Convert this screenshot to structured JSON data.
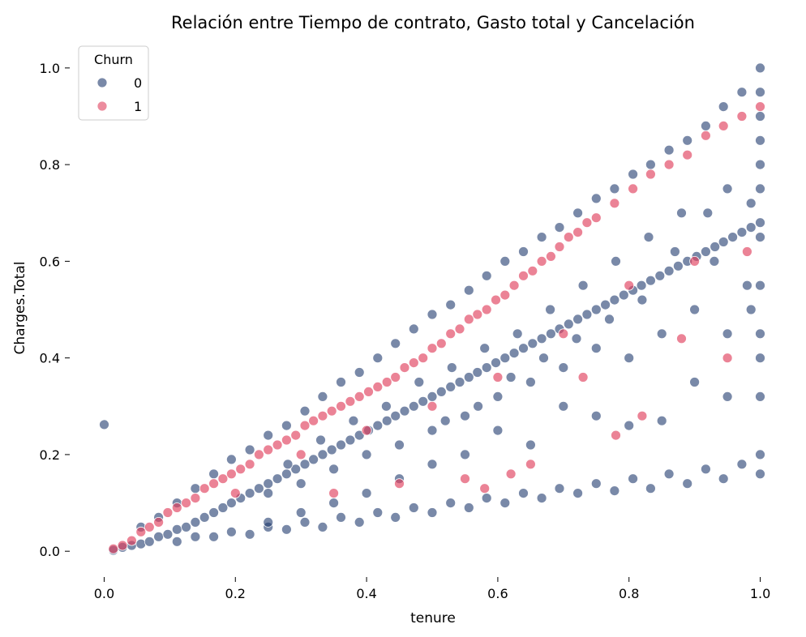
{
  "chart_data": {
    "type": "scatter",
    "title": "Relación entre Tiempo de contrato, Gasto total y Cancelación",
    "xlabel": "tenure",
    "ylabel": "Charges.Total",
    "xlim": [
      -0.05,
      1.05
    ],
    "ylim": [
      -0.05,
      1.04
    ],
    "xticks": [
      0.0,
      0.2,
      0.4,
      0.6,
      0.8,
      1.0
    ],
    "xtick_labels": [
      "0.0",
      "0.2",
      "0.4",
      "0.6",
      "0.8",
      "1.0"
    ],
    "yticks": [
      0.0,
      0.2,
      0.4,
      0.6,
      0.8,
      1.0
    ],
    "ytick_labels": [
      "0.0",
      "0.2",
      "0.4",
      "0.6",
      "0.8",
      "1.0"
    ],
    "grid": false,
    "legend": {
      "title": "Churn",
      "placement": "top-left"
    },
    "series": [
      {
        "name": "0",
        "color": "#1f3a6e",
        "points": [
          [
            0.0,
            0.262
          ],
          [
            0.014,
            0.002
          ],
          [
            0.028,
            0.008
          ],
          [
            0.042,
            0.012
          ],
          [
            0.056,
            0.015
          ],
          [
            0.069,
            0.02
          ],
          [
            0.083,
            0.03
          ],
          [
            0.097,
            0.035
          ],
          [
            0.111,
            0.045
          ],
          [
            0.125,
            0.05
          ],
          [
            0.139,
            0.06
          ],
          [
            0.153,
            0.07
          ],
          [
            0.167,
            0.08
          ],
          [
            0.181,
            0.09
          ],
          [
            0.194,
            0.1
          ],
          [
            0.208,
            0.11
          ],
          [
            0.222,
            0.12
          ],
          [
            0.236,
            0.13
          ],
          [
            0.25,
            0.14
          ],
          [
            0.264,
            0.15
          ],
          [
            0.278,
            0.16
          ],
          [
            0.292,
            0.17
          ],
          [
            0.306,
            0.18
          ],
          [
            0.319,
            0.19
          ],
          [
            0.333,
            0.2
          ],
          [
            0.347,
            0.21
          ],
          [
            0.361,
            0.22
          ],
          [
            0.375,
            0.23
          ],
          [
            0.389,
            0.24
          ],
          [
            0.403,
            0.25
          ],
          [
            0.417,
            0.26
          ],
          [
            0.431,
            0.27
          ],
          [
            0.444,
            0.28
          ],
          [
            0.458,
            0.29
          ],
          [
            0.472,
            0.3
          ],
          [
            0.486,
            0.31
          ],
          [
            0.5,
            0.32
          ],
          [
            0.514,
            0.33
          ],
          [
            0.528,
            0.34
          ],
          [
            0.542,
            0.35
          ],
          [
            0.556,
            0.36
          ],
          [
            0.569,
            0.37
          ],
          [
            0.583,
            0.38
          ],
          [
            0.597,
            0.39
          ],
          [
            0.611,
            0.4
          ],
          [
            0.625,
            0.41
          ],
          [
            0.639,
            0.42
          ],
          [
            0.653,
            0.43
          ],
          [
            0.667,
            0.44
          ],
          [
            0.681,
            0.45
          ],
          [
            0.694,
            0.46
          ],
          [
            0.708,
            0.47
          ],
          [
            0.722,
            0.48
          ],
          [
            0.736,
            0.49
          ],
          [
            0.75,
            0.5
          ],
          [
            0.764,
            0.51
          ],
          [
            0.778,
            0.52
          ],
          [
            0.792,
            0.53
          ],
          [
            0.806,
            0.54
          ],
          [
            0.819,
            0.55
          ],
          [
            0.833,
            0.56
          ],
          [
            0.847,
            0.57
          ],
          [
            0.861,
            0.58
          ],
          [
            0.875,
            0.59
          ],
          [
            0.889,
            0.6
          ],
          [
            0.903,
            0.61
          ],
          [
            0.917,
            0.62
          ],
          [
            0.931,
            0.63
          ],
          [
            0.944,
            0.64
          ],
          [
            0.958,
            0.65
          ],
          [
            0.972,
            0.66
          ],
          [
            0.986,
            0.67
          ],
          [
            1.0,
            0.68
          ],
          [
            1.0,
            0.8
          ],
          [
            1.0,
            0.9
          ],
          [
            1.0,
            1.0
          ],
          [
            0.972,
            0.95
          ],
          [
            0.944,
            0.92
          ],
          [
            0.917,
            0.88
          ],
          [
            0.889,
            0.85
          ],
          [
            0.861,
            0.83
          ],
          [
            0.833,
            0.8
          ],
          [
            0.806,
            0.78
          ],
          [
            0.778,
            0.75
          ],
          [
            0.75,
            0.73
          ],
          [
            0.722,
            0.7
          ],
          [
            0.694,
            0.67
          ],
          [
            0.667,
            0.65
          ],
          [
            0.639,
            0.62
          ],
          [
            0.611,
            0.6
          ],
          [
            0.583,
            0.57
          ],
          [
            0.556,
            0.54
          ],
          [
            0.528,
            0.51
          ],
          [
            0.5,
            0.49
          ],
          [
            0.472,
            0.46
          ],
          [
            0.444,
            0.43
          ],
          [
            0.417,
            0.4
          ],
          [
            0.389,
            0.37
          ],
          [
            0.361,
            0.35
          ],
          [
            0.333,
            0.32
          ],
          [
            0.306,
            0.29
          ],
          [
            0.278,
            0.26
          ],
          [
            0.25,
            0.24
          ],
          [
            0.222,
            0.21
          ],
          [
            0.194,
            0.19
          ],
          [
            0.167,
            0.16
          ],
          [
            0.139,
            0.13
          ],
          [
            0.111,
            0.1
          ],
          [
            0.083,
            0.07
          ],
          [
            0.056,
            0.05
          ],
          [
            0.111,
            0.02
          ],
          [
            0.167,
            0.03
          ],
          [
            0.222,
            0.035
          ],
          [
            0.278,
            0.045
          ],
          [
            0.333,
            0.05
          ],
          [
            0.389,
            0.06
          ],
          [
            0.444,
            0.07
          ],
          [
            0.5,
            0.08
          ],
          [
            0.556,
            0.09
          ],
          [
            0.611,
            0.1
          ],
          [
            0.667,
            0.11
          ],
          [
            0.722,
            0.12
          ],
          [
            0.778,
            0.125
          ],
          [
            0.833,
            0.13
          ],
          [
            0.889,
            0.14
          ],
          [
            0.944,
            0.15
          ],
          [
            1.0,
            0.16
          ],
          [
            1.0,
            0.2
          ],
          [
            0.972,
            0.18
          ],
          [
            0.917,
            0.17
          ],
          [
            0.861,
            0.16
          ],
          [
            0.806,
            0.15
          ],
          [
            0.75,
            0.14
          ],
          [
            0.694,
            0.13
          ],
          [
            0.639,
            0.12
          ],
          [
            0.583,
            0.11
          ],
          [
            0.528,
            0.1
          ],
          [
            0.472,
            0.09
          ],
          [
            0.417,
            0.08
          ],
          [
            0.361,
            0.07
          ],
          [
            0.306,
            0.06
          ],
          [
            0.25,
            0.05
          ],
          [
            0.194,
            0.04
          ],
          [
            0.139,
            0.03
          ],
          [
            0.9,
            0.35
          ],
          [
            0.95,
            0.32
          ],
          [
            0.85,
            0.27
          ],
          [
            0.8,
            0.26
          ],
          [
            0.75,
            0.28
          ],
          [
            0.7,
            0.3
          ],
          [
            0.65,
            0.22
          ],
          [
            0.6,
            0.25
          ],
          [
            0.55,
            0.2
          ],
          [
            0.5,
            0.18
          ],
          [
            0.45,
            0.15
          ],
          [
            0.4,
            0.12
          ],
          [
            0.35,
            0.1
          ],
          [
            0.3,
            0.08
          ],
          [
            0.25,
            0.06
          ],
          [
            0.95,
            0.45
          ],
          [
            0.9,
            0.5
          ],
          [
            0.85,
            0.45
          ],
          [
            0.8,
            0.4
          ],
          [
            0.75,
            0.42
          ],
          [
            0.7,
            0.38
          ],
          [
            0.65,
            0.35
          ],
          [
            0.6,
            0.32
          ],
          [
            0.55,
            0.28
          ],
          [
            0.5,
            0.25
          ],
          [
            0.45,
            0.22
          ],
          [
            0.4,
            0.2
          ],
          [
            0.35,
            0.17
          ],
          [
            0.3,
            0.14
          ],
          [
            0.25,
            0.12
          ],
          [
            0.98,
            0.55
          ],
          [
            0.93,
            0.6
          ],
          [
            0.88,
            0.7
          ],
          [
            0.83,
            0.65
          ],
          [
            0.78,
            0.6
          ],
          [
            0.73,
            0.55
          ],
          [
            0.68,
            0.5
          ],
          [
            0.63,
            0.45
          ],
          [
            0.58,
            0.42
          ],
          [
            0.53,
            0.38
          ],
          [
            0.48,
            0.35
          ],
          [
            0.43,
            0.3
          ],
          [
            0.38,
            0.27
          ],
          [
            0.33,
            0.23
          ],
          [
            0.28,
            0.18
          ],
          [
            0.95,
            0.75
          ],
          [
            0.92,
            0.7
          ],
          [
            0.87,
            0.62
          ],
          [
            0.82,
            0.52
          ],
          [
            0.77,
            0.48
          ],
          [
            0.72,
            0.44
          ],
          [
            0.67,
            0.4
          ],
          [
            0.62,
            0.36
          ],
          [
            0.57,
            0.3
          ],
          [
            0.52,
            0.27
          ],
          [
            1.0,
            0.45
          ],
          [
            1.0,
            0.55
          ],
          [
            1.0,
            0.65
          ],
          [
            1.0,
            0.75
          ],
          [
            1.0,
            0.85
          ],
          [
            1.0,
            0.95
          ],
          [
            1.0,
            0.32
          ],
          [
            1.0,
            0.4
          ],
          [
            0.986,
            0.5
          ],
          [
            0.986,
            0.72
          ]
        ]
      },
      {
        "name": "1",
        "color": "#e0405e",
        "points": [
          [
            0.014,
            0.005
          ],
          [
            0.028,
            0.012
          ],
          [
            0.042,
            0.022
          ],
          [
            0.056,
            0.04
          ],
          [
            0.069,
            0.05
          ],
          [
            0.083,
            0.06
          ],
          [
            0.097,
            0.08
          ],
          [
            0.111,
            0.09
          ],
          [
            0.125,
            0.1
          ],
          [
            0.139,
            0.11
          ],
          [
            0.153,
            0.13
          ],
          [
            0.167,
            0.14
          ],
          [
            0.181,
            0.15
          ],
          [
            0.194,
            0.16
          ],
          [
            0.208,
            0.17
          ],
          [
            0.222,
            0.18
          ],
          [
            0.236,
            0.2
          ],
          [
            0.25,
            0.21
          ],
          [
            0.264,
            0.22
          ],
          [
            0.278,
            0.23
          ],
          [
            0.292,
            0.24
          ],
          [
            0.306,
            0.26
          ],
          [
            0.319,
            0.27
          ],
          [
            0.333,
            0.28
          ],
          [
            0.347,
            0.29
          ],
          [
            0.361,
            0.3
          ],
          [
            0.375,
            0.31
          ],
          [
            0.389,
            0.32
          ],
          [
            0.403,
            0.33
          ],
          [
            0.417,
            0.34
          ],
          [
            0.431,
            0.35
          ],
          [
            0.444,
            0.36
          ],
          [
            0.458,
            0.38
          ],
          [
            0.472,
            0.39
          ],
          [
            0.486,
            0.4
          ],
          [
            0.5,
            0.42
          ],
          [
            0.514,
            0.43
          ],
          [
            0.528,
            0.45
          ],
          [
            0.542,
            0.46
          ],
          [
            0.556,
            0.48
          ],
          [
            0.569,
            0.49
          ],
          [
            0.583,
            0.5
          ],
          [
            0.597,
            0.52
          ],
          [
            0.611,
            0.53
          ],
          [
            0.625,
            0.55
          ],
          [
            0.639,
            0.57
          ],
          [
            0.653,
            0.58
          ],
          [
            0.667,
            0.6
          ],
          [
            0.681,
            0.61
          ],
          [
            0.694,
            0.63
          ],
          [
            0.708,
            0.65
          ],
          [
            0.722,
            0.66
          ],
          [
            0.736,
            0.68
          ],
          [
            0.75,
            0.69
          ],
          [
            0.778,
            0.72
          ],
          [
            0.806,
            0.75
          ],
          [
            0.833,
            0.78
          ],
          [
            0.861,
            0.8
          ],
          [
            0.889,
            0.82
          ],
          [
            0.917,
            0.86
          ],
          [
            0.944,
            0.88
          ],
          [
            0.972,
            0.9
          ],
          [
            1.0,
            0.92
          ],
          [
            0.2,
            0.12
          ],
          [
            0.3,
            0.2
          ],
          [
            0.4,
            0.25
          ],
          [
            0.5,
            0.3
          ],
          [
            0.6,
            0.36
          ],
          [
            0.55,
            0.15
          ],
          [
            0.65,
            0.18
          ],
          [
            0.7,
            0.45
          ],
          [
            0.8,
            0.55
          ],
          [
            0.9,
            0.6
          ],
          [
            0.78,
            0.24
          ],
          [
            0.82,
            0.28
          ],
          [
            0.58,
            0.13
          ],
          [
            0.62,
            0.16
          ],
          [
            0.45,
            0.14
          ],
          [
            0.35,
            0.12
          ],
          [
            0.95,
            0.4
          ],
          [
            0.98,
            0.62
          ],
          [
            0.88,
            0.44
          ],
          [
            0.73,
            0.36
          ]
        ]
      }
    ]
  }
}
